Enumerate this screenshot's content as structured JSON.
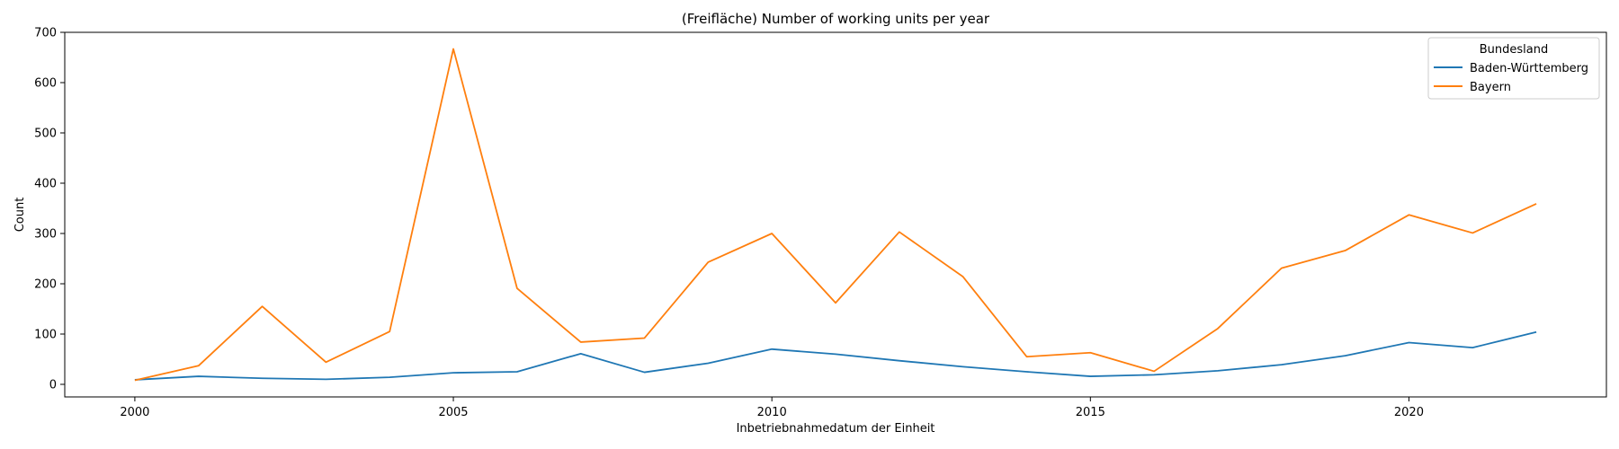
{
  "chart_data": {
    "type": "line",
    "title": "(Freifläche) Number of working units per year",
    "xlabel": "Inbetriebnahmedatum der Einheit",
    "ylabel": "Count",
    "xlim": [
      1998.9,
      2023.1
    ],
    "ylim": [
      -25,
      700
    ],
    "xticks": [
      2000,
      2005,
      2010,
      2015,
      2020
    ],
    "yticks": [
      0,
      100,
      200,
      300,
      400,
      500,
      600,
      700
    ],
    "grid": false,
    "legend": {
      "title": "Bundesland",
      "position": "top-right"
    },
    "x": [
      2000,
      2001,
      2002,
      2003,
      2004,
      2005,
      2006,
      2007,
      2008,
      2009,
      2010,
      2011,
      2012,
      2013,
      2014,
      2015,
      2016,
      2017,
      2018,
      2019,
      2020,
      2021,
      2022
    ],
    "series": [
      {
        "name": "Baden-Württemberg",
        "color": "#1f77b4",
        "values": [
          9,
          16,
          12,
          10,
          14,
          23,
          25,
          61,
          24,
          42,
          70,
          60,
          47,
          35,
          25,
          16,
          19,
          27,
          39,
          57,
          83,
          73,
          104
        ]
      },
      {
        "name": "Bayern",
        "color": "#ff7f0e",
        "values": [
          8,
          37,
          155,
          44,
          105,
          667,
          191,
          84,
          92,
          243,
          300,
          162,
          303,
          214,
          55,
          63,
          26,
          111,
          231,
          266,
          337,
          301,
          359
        ]
      }
    ]
  }
}
